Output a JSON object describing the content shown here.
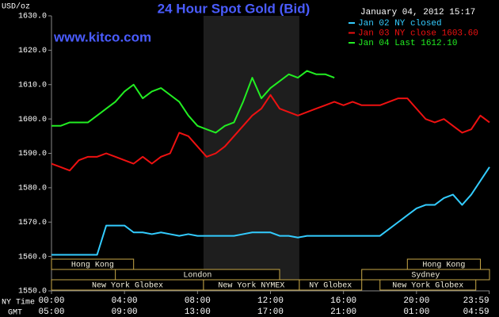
{
  "chart_data": {
    "type": "line",
    "title": "24 Hour Spot Gold (Bid)",
    "subtitle": "January 04, 2012 15:17",
    "annotation": "www.kitco.com",
    "y_label": "USD/oz",
    "x_label": "NY Time",
    "x2_label": "GMT",
    "xlim": [
      0,
      24
    ],
    "xticks": [
      {
        "value": 0,
        "label": "00:00"
      },
      {
        "value": 4,
        "label": "04:00"
      },
      {
        "value": 8,
        "label": "08:00"
      },
      {
        "value": 12,
        "label": "12:00"
      },
      {
        "value": 16,
        "label": "16:00"
      },
      {
        "value": 20,
        "label": "20:00"
      },
      {
        "value": 23.983,
        "label": "23:59"
      }
    ],
    "x2ticks": [
      {
        "value": 0,
        "label": "05:00"
      },
      {
        "value": 4,
        "label": "09:00"
      },
      {
        "value": 8,
        "label": "13:00"
      },
      {
        "value": 12,
        "label": "17:00"
      },
      {
        "value": 16,
        "label": "21:00"
      },
      {
        "value": 20,
        "label": "01:00"
      },
      {
        "value": 23.983,
        "label": "04:59"
      }
    ],
    "ylim": [
      1550,
      1630
    ],
    "yticks": [
      {
        "value": 1550,
        "label": "1550.0"
      },
      {
        "value": 1560,
        "label": "1560.0"
      },
      {
        "value": 1570,
        "label": "1570.0"
      },
      {
        "value": 1580,
        "label": "1580.0"
      },
      {
        "value": 1590,
        "label": "1590.0"
      },
      {
        "value": 1600,
        "label": "1600.0"
      },
      {
        "value": 1610,
        "label": "1610.0"
      },
      {
        "value": 1620,
        "label": "1620.0"
      },
      {
        "value": 1630,
        "label": "1630.0"
      }
    ],
    "grid": false,
    "legend": "top-right",
    "x": [
      0,
      0.5,
      1,
      1.5,
      2,
      2.5,
      3,
      3.5,
      4,
      4.5,
      5,
      5.5,
      6,
      6.5,
      7,
      7.5,
      8,
      8.5,
      9,
      9.5,
      10,
      10.5,
      11,
      11.5,
      12,
      12.5,
      13,
      13.5,
      14,
      14.5,
      15,
      15.5,
      16,
      16.5,
      17,
      17.5,
      18,
      18.5,
      19,
      19.5,
      20,
      20.5,
      21,
      21.5,
      22,
      22.5,
      23,
      23.5,
      24
    ],
    "series": [
      {
        "name": "Jan 02 NY closed",
        "color": "#33ccff",
        "values": [
          1560.5,
          1560.5,
          1560.5,
          1560.5,
          1560.5,
          1560.5,
          1569,
          1569,
          1569,
          1567,
          1567,
          1566.5,
          1567,
          1566.5,
          1566,
          1566.5,
          1566,
          1566,
          1566,
          1566,
          1566,
          1566.5,
          1567,
          1567,
          1567,
          1566,
          1566,
          1565.5,
          1566,
          1566,
          1566,
          1566,
          1566,
          1566,
          1566,
          1566,
          1566,
          1568,
          1570,
          1572,
          1574,
          1575,
          1575,
          1577,
          1578,
          1575,
          1578,
          1582,
          1586
        ]
      },
      {
        "name": "Jan 03 NY close 1603.60",
        "color": "#ee1111",
        "values": [
          1587,
          1586,
          1585,
          1588,
          1589,
          1589,
          1590,
          1589,
          1588,
          1587,
          1589,
          1587,
          1589,
          1590,
          1596,
          1595,
          1592,
          1589,
          1590,
          1592,
          1595,
          1598,
          1601,
          1603,
          1607,
          1603,
          1602,
          1601,
          1602,
          1603,
          1604,
          1605,
          1604,
          1605,
          1604,
          1604,
          1604,
          1605,
          1606,
          1606,
          1603,
          1600,
          1599,
          1600,
          1598,
          1596,
          1597,
          1601,
          1599
        ]
      },
      {
        "name": "Jan 04 Last 1612.10",
        "color": "#22ee22",
        "values": [
          1598,
          1598,
          1599,
          1599,
          1599,
          1601,
          1603,
          1605,
          1608,
          1610,
          1606,
          1608,
          1609,
          1607,
          1605,
          1601,
          1598,
          1597,
          1596,
          1598,
          1599,
          1605,
          1612,
          1606,
          1609,
          1611,
          1613,
          1612,
          1614,
          1613,
          1613,
          1612,
          null,
          null,
          null,
          null,
          null,
          null,
          null,
          null,
          null,
          null,
          null,
          null,
          null,
          null,
          null,
          null,
          null
        ]
      }
    ],
    "sessions": [
      [
        {
          "name": "Hong Kong",
          "start": 0,
          "end": 4.5
        },
        {
          "name": "Hong Kong",
          "start": 19.5,
          "end": 23.5
        }
      ],
      [
        {
          "name": "London",
          "start": 3.5,
          "end": 12.5
        },
        {
          "name": "Sydney",
          "start": 17,
          "end": 24
        }
      ],
      [
        {
          "name": "New York Globex",
          "start": 0,
          "end": 8.33
        },
        {
          "name": "New York NYMEX",
          "start": 8.33,
          "end": 13.58,
          "highlight": true
        },
        {
          "name": "NY Globex",
          "start": 13.58,
          "end": 17
        },
        {
          "name": "New York Globex",
          "start": 18,
          "end": 23.25
        }
      ]
    ]
  }
}
